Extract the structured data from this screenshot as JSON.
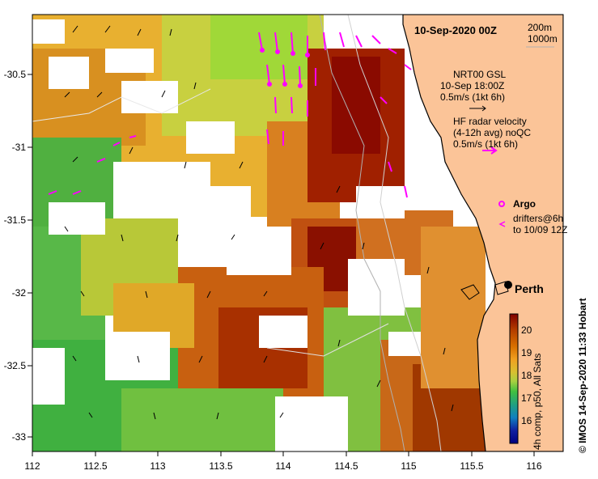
{
  "map": {
    "title": "10-Sep-2020 00Z",
    "x_ticks": [
      "112",
      "112.5",
      "113",
      "113.5",
      "114",
      "114.5",
      "115",
      "115.5",
      "116"
    ],
    "y_ticks": [
      "-30.5",
      "-31",
      "-31.5",
      "-32",
      "-32.5",
      "-33"
    ],
    "isobath_legend": [
      "200m",
      "1000m"
    ],
    "nrt_legend": [
      "NRT00 GSL",
      "10-Sep 18:00Z",
      "0.5m/s (1kt 6h)"
    ],
    "hf_legend": [
      "HF radar velocity",
      "(4-12h avg) noQC",
      "0.5m/s (1kt 6h)"
    ],
    "argo_label": "Argo",
    "drifter_legend": [
      "drifters@6h",
      "to 10/09 12Z"
    ],
    "city_label": "Perth",
    "colorbar": {
      "ticks": [
        "20",
        "19",
        "18",
        "17",
        "16"
      ],
      "label": "4h comp, p50, All Sats",
      "colors": [
        "#7f0000",
        "#b33c00",
        "#d87000",
        "#f0a020",
        "#d8c030",
        "#a8d040",
        "#40c040",
        "#20a080",
        "#1080c0",
        "#1020a0",
        "#000080"
      ]
    },
    "credit": "© IMOS 14-Sep-2020 11:33 Hobart",
    "colors": {
      "land": "#fbc498",
      "current_arrow": "#000000",
      "hf_arrow": "#ff00ff",
      "coast": "#000000"
    }
  }
}
